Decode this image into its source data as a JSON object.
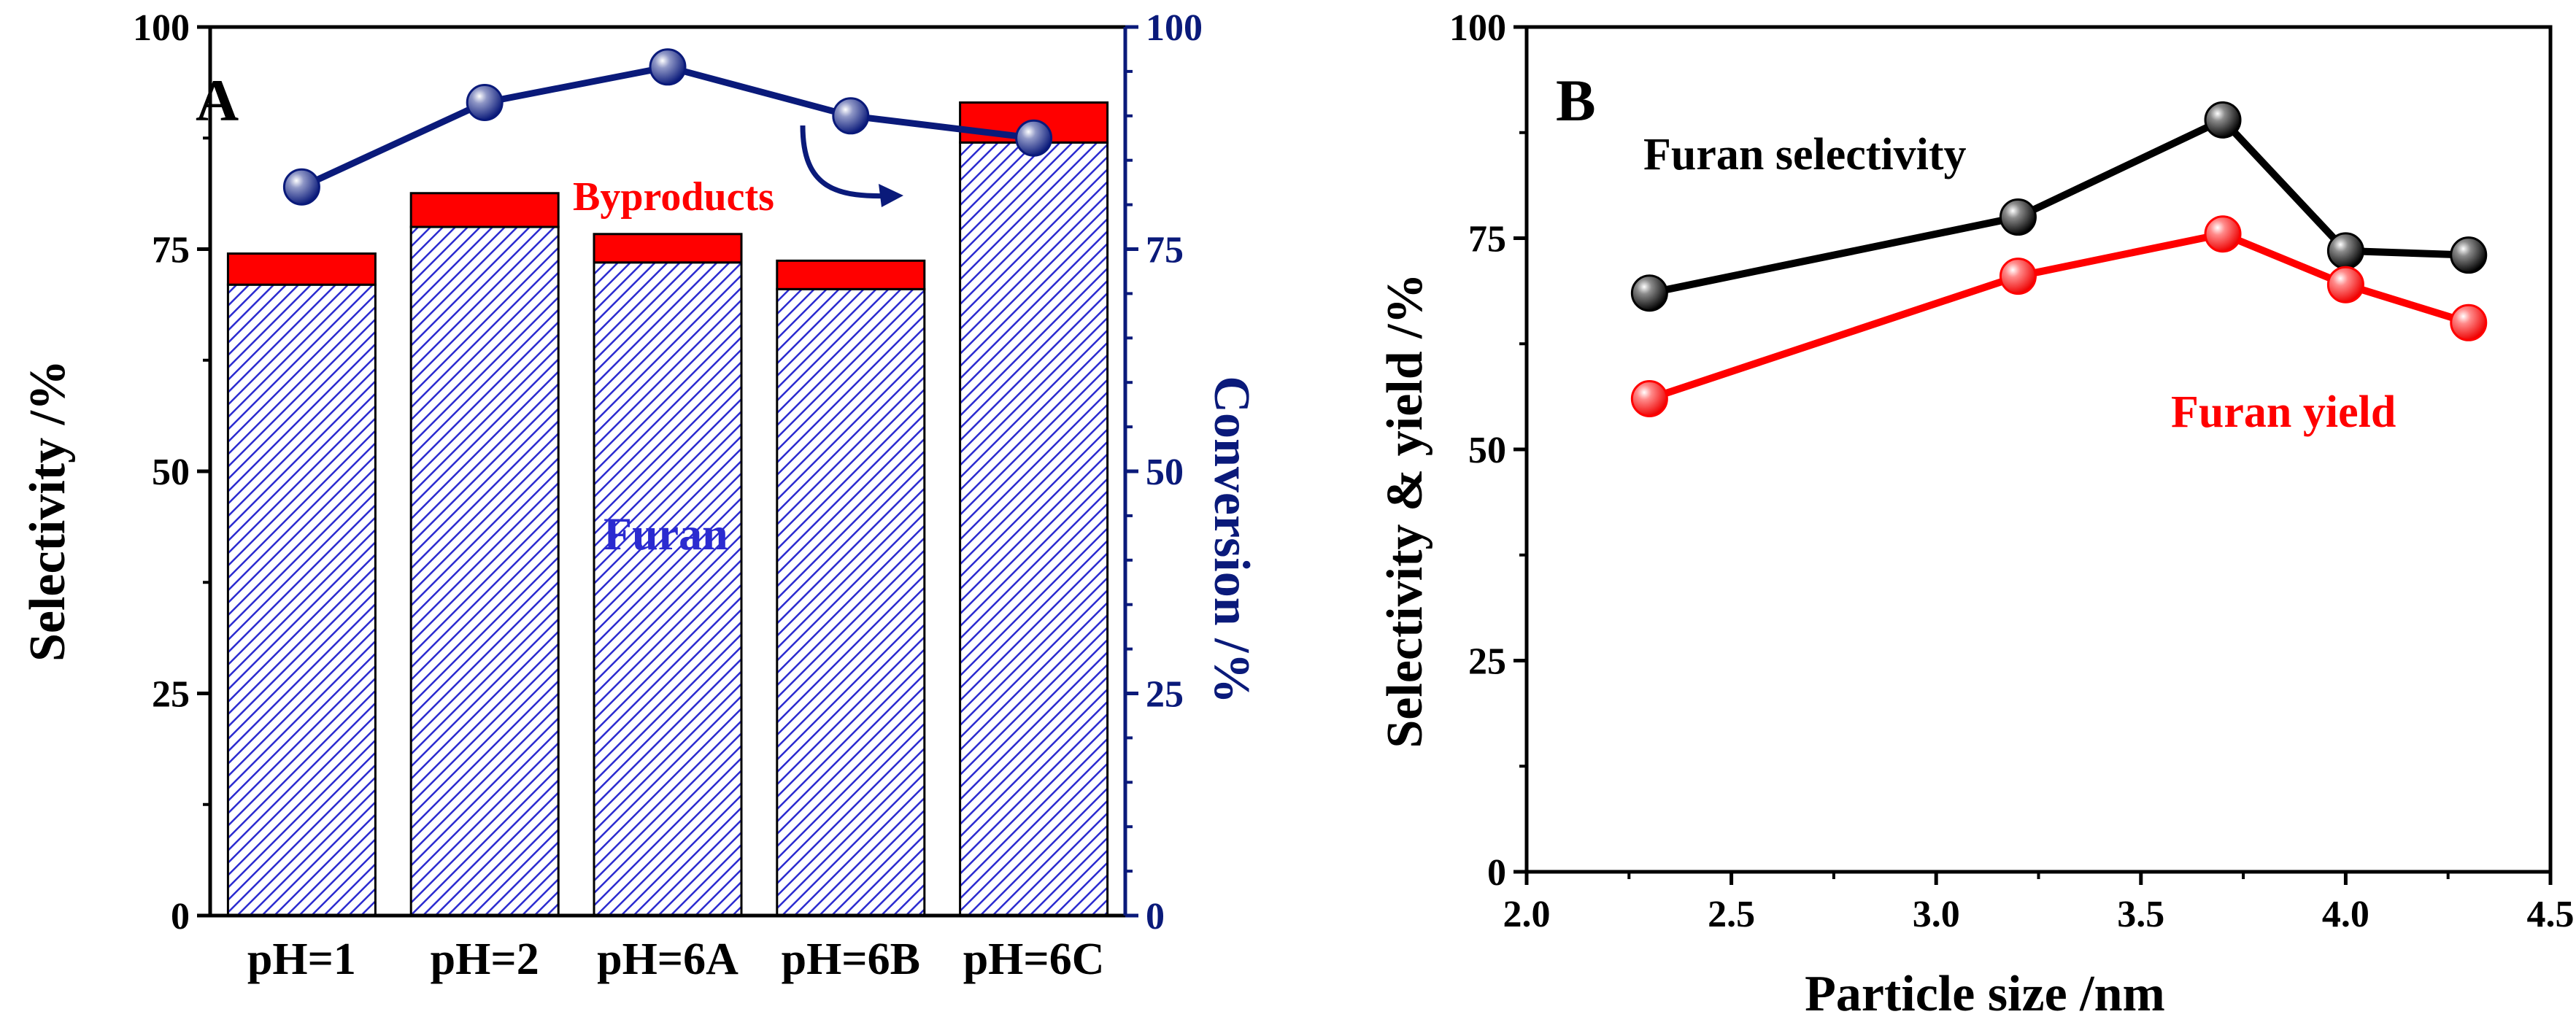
{
  "chart_data": [
    {
      "panel": "A",
      "type": "bar",
      "categories": [
        "pH=1",
        "pH=2",
        "pH=6A",
        "pH=6B",
        "pH=6C"
      ],
      "series": [
        {
          "name": "Furan",
          "values": [
            71,
            77.5,
            73.5,
            70.5,
            87
          ],
          "color": "#3333cc"
        },
        {
          "name": "Byproducts",
          "values": [
            3.5,
            3.8,
            3.2,
            3.2,
            4.5
          ],
          "color": "#ff0000"
        }
      ],
      "overlay_line": {
        "name": "Conversion",
        "values": [
          82,
          91.5,
          95.5,
          90,
          87.5
        ],
        "color": "#0a1a7a"
      },
      "ylabel": "Selectivity /%",
      "ylabel_right": "Conversion /%",
      "ylim": [
        0,
        100
      ],
      "ylim_right": [
        0,
        100
      ],
      "yticks": [
        0,
        25,
        50,
        75,
        100
      ],
      "yticks_right": [
        0,
        25,
        50,
        75,
        100
      ],
      "annotations": {
        "furan": "Furan",
        "byproducts": "Byproducts"
      }
    },
    {
      "panel": "B",
      "type": "line",
      "xlabel": "Particle size /nm",
      "ylabel": "Selectivity & yield /%",
      "xlim": [
        2.0,
        4.5
      ],
      "ylim": [
        0,
        100
      ],
      "xticks": [
        2.0,
        2.5,
        3.0,
        3.5,
        4.0,
        4.5
      ],
      "yticks": [
        0,
        25,
        50,
        75,
        100
      ],
      "series": [
        {
          "name": "Furan selectivity",
          "x": [
            2.3,
            3.2,
            3.7,
            4.0,
            4.3
          ],
          "y": [
            68.5,
            77.5,
            89,
            73.5,
            73
          ],
          "color": "#000000"
        },
        {
          "name": "Furan yield",
          "x": [
            2.3,
            3.2,
            3.7,
            4.0,
            4.3
          ],
          "y": [
            56,
            70.5,
            75.5,
            69.5,
            65
          ],
          "color": "#ff0000"
        }
      ]
    }
  ]
}
